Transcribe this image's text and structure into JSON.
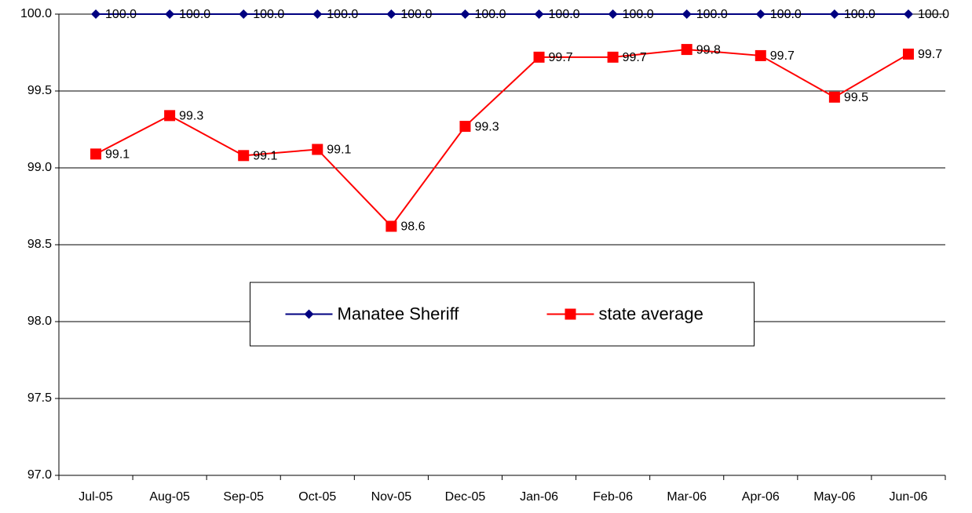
{
  "chart_data": {
    "type": "line",
    "categories": [
      "Jul-05",
      "Aug-05",
      "Sep-05",
      "Oct-05",
      "Nov-05",
      "Dec-05",
      "Jan-06",
      "Feb-06",
      "Mar-06",
      "Apr-06",
      "May-06",
      "Jun-06"
    ],
    "series": [
      {
        "name": "Manatee Sheriff",
        "color": "#000080",
        "marker": "diamond",
        "values": [
          100,
          100,
          100,
          100,
          100,
          100,
          100,
          100,
          100,
          100,
          100,
          100
        ],
        "value_labels": [
          "100.0",
          "100.0",
          "100.0",
          "100.0",
          "100.0",
          "100.0",
          "100.0",
          "100.0",
          "100.0",
          "100.0",
          "100.0",
          "100.0"
        ]
      },
      {
        "name": "state average",
        "color": "#ff0000",
        "marker": "square",
        "values": [
          99.09,
          99.34,
          99.08,
          99.12,
          98.62,
          99.27,
          99.72,
          99.72,
          99.77,
          99.73,
          99.46,
          99.74
        ],
        "value_labels": [
          "99.1",
          "99.3",
          "99.1",
          "99.1",
          "98.6",
          "99.3",
          "99.7",
          "99.7",
          "99.8",
          "99.7",
          "99.5",
          "99.7"
        ]
      }
    ],
    "ylim": [
      97,
      100
    ],
    "yticks": [
      {
        "value": 97,
        "label": "97.0"
      },
      {
        "value": 97.5,
        "label": "97.5"
      },
      {
        "value": 98,
        "label": "98.0"
      },
      {
        "value": 98.5,
        "label": "98.5"
      },
      {
        "value": 99,
        "label": "99.0"
      },
      {
        "value": 99.5,
        "label": "99.5"
      },
      {
        "value": 100,
        "label": "100.0"
      }
    ],
    "grid": true,
    "legend": "center"
  }
}
